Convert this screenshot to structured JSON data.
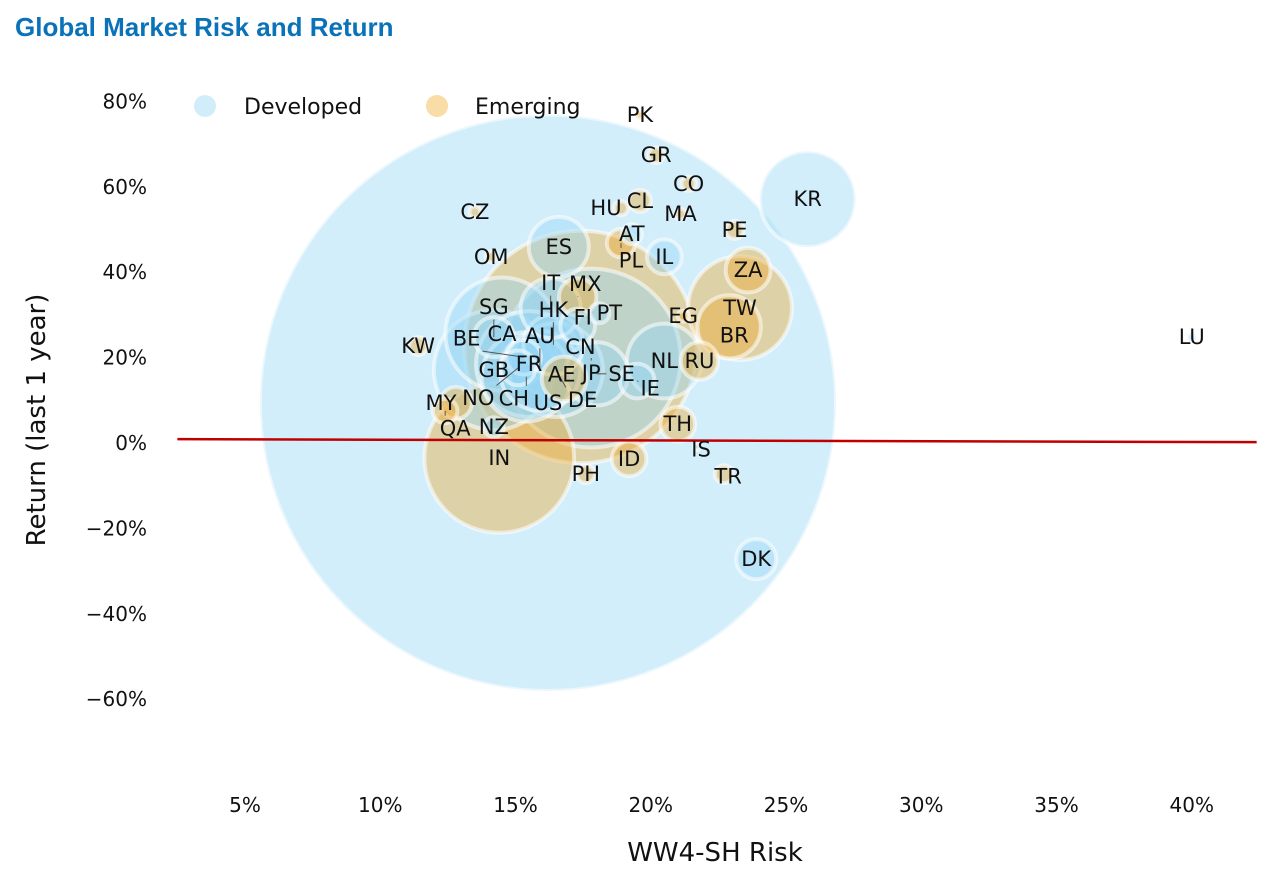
{
  "chart_data": {
    "type": "scatter",
    "title": "Global Market Risk and Return",
    "xlabel": "WW4-SH Risk",
    "ylabel": "Return (last 1 year)",
    "xlim": [
      2.5,
      42.5
    ],
    "ylim": [
      -79,
      88
    ],
    "x_ticks": [
      "5%",
      "10%",
      "15%",
      "20%",
      "25%",
      "30%",
      "35%",
      "40%"
    ],
    "x_tick_values": [
      5,
      10,
      15,
      20,
      25,
      30,
      35,
      40
    ],
    "y_ticks": [
      "80%",
      "60%",
      "40%",
      "20%",
      "0%",
      "−20%",
      "−40%",
      "−60%"
    ],
    "y_tick_values": [
      80,
      60,
      40,
      20,
      0,
      -20,
      -40,
      -60
    ],
    "grid": false,
    "legend": {
      "placement": "top-left",
      "entries": [
        "Developed",
        "Emerging"
      ]
    },
    "colors": {
      "Developed": "#bfe6f8",
      "Emerging": "#f5c46a",
      "trend": "#c00000"
    },
    "trend_line": {
      "x": [
        2.5,
        42.4
      ],
      "y": [
        0.9,
        0.2
      ]
    },
    "points": [
      {
        "label": "US",
        "group": "Developed",
        "x": 16.2,
        "y": 9.4,
        "size": 830
      },
      {
        "label": "CN",
        "group": "Emerging",
        "x": 17.4,
        "y": 22.5,
        "size": 135
      },
      {
        "label": "JP",
        "group": "Developed",
        "x": 17.8,
        "y": 19.9,
        "size": 80
      },
      {
        "label": "IN",
        "group": "Emerging",
        "x": 14.4,
        "y": -3.5,
        "size": 56
      },
      {
        "label": "GB",
        "group": "Developed",
        "x": 14.2,
        "y": 17.1,
        "size": 36
      },
      {
        "label": "CA",
        "group": "Developed",
        "x": 14.5,
        "y": 25.5,
        "size": 32
      },
      {
        "label": "FR",
        "group": "Developed",
        "x": 15.5,
        "y": 18.5,
        "size": 28
      },
      {
        "label": "TW",
        "group": "Emerging",
        "x": 23.3,
        "y": 31.6,
        "size": 27
      },
      {
        "label": "KR",
        "group": "Developed",
        "x": 25.8,
        "y": 57.1,
        "size": 23
      },
      {
        "label": "DE",
        "group": "Developed",
        "x": 16.5,
        "y": 17.1,
        "size": 22
      },
      {
        "label": "CH",
        "group": "Developed",
        "x": 15.4,
        "y": 15.5,
        "size": 20
      },
      {
        "label": "AU",
        "group": "Developed",
        "x": 15.9,
        "y": 16.9,
        "size": 16
      },
      {
        "label": "NL",
        "group": "Developed",
        "x": 20.5,
        "y": 19.2,
        "size": 14
      },
      {
        "label": "SE",
        "group": "Developed",
        "x": 18.0,
        "y": 16.2,
        "size": 10
      },
      {
        "label": "HK",
        "group": "Developed",
        "x": 16.4,
        "y": 23.0,
        "size": 9
      },
      {
        "label": "IT",
        "group": "Developed",
        "x": 16.3,
        "y": 31.6,
        "size": 9
      },
      {
        "label": "ES",
        "group": "Developed",
        "x": 16.6,
        "y": 45.9,
        "size": 9
      },
      {
        "label": "BR",
        "group": "Emerging",
        "x": 22.9,
        "y": 27.2,
        "size": 10
      },
      {
        "label": "DK",
        "group": "Developed",
        "x": 23.9,
        "y": -27.2,
        "size": 4
      },
      {
        "label": "SG",
        "group": "Developed",
        "x": 14.2,
        "y": 24.8,
        "size": 4
      },
      {
        "label": "BE",
        "group": "Developed",
        "x": 15.3,
        "y": 20.1,
        "size": 3
      },
      {
        "label": "FI",
        "group": "Developed",
        "x": 17.3,
        "y": 27.4,
        "size": 3
      },
      {
        "label": "NO",
        "group": "Developed",
        "x": 15.1,
        "y": 17.6,
        "size": 3
      },
      {
        "label": "IL",
        "group": "Developed",
        "x": 20.5,
        "y": 43.6,
        "size": 3
      },
      {
        "label": "IE",
        "group": "Developed",
        "x": 19.5,
        "y": 14.5,
        "size": 3
      },
      {
        "label": "AE",
        "group": "Emerging",
        "x": 16.8,
        "y": 15.0,
        "size": 5
      },
      {
        "label": "ZA",
        "group": "Emerging",
        "x": 23.6,
        "y": 40.5,
        "size": 5
      },
      {
        "label": "MX",
        "group": "Emerging",
        "x": 17.3,
        "y": 34.2,
        "size": 3.5
      },
      {
        "label": "RU",
        "group": "Emerging",
        "x": 21.8,
        "y": 19.2,
        "size": 3.5
      },
      {
        "label": "ID",
        "group": "Emerging",
        "x": 19.2,
        "y": -3.7,
        "size": 3
      },
      {
        "label": "TH",
        "group": "Emerging",
        "x": 21.0,
        "y": 4.4,
        "size": 3
      },
      {
        "label": "MY",
        "group": "Emerging",
        "x": 12.8,
        "y": 9.4,
        "size": 2.5
      },
      {
        "label": "NZ",
        "group": "Developed",
        "x": 14.2,
        "y": 3.7,
        "size": 1
      },
      {
        "label": "AT",
        "group": "Developed",
        "x": 19.3,
        "y": 48.9,
        "size": 1
      },
      {
        "label": "PT",
        "group": "Developed",
        "x": 18.1,
        "y": 30.4,
        "size": 1
      },
      {
        "label": "IS",
        "group": "Developed",
        "x": 21.7,
        "y": -0.9,
        "size": 0.1
      },
      {
        "label": "LU",
        "group": "Developed",
        "x": 40.0,
        "y": 24.8,
        "size": 0.2
      },
      {
        "label": "PL",
        "group": "Emerging",
        "x": 18.9,
        "y": 46.8,
        "size": 2
      },
      {
        "label": "QA",
        "group": "Emerging",
        "x": 12.4,
        "y": 7.5,
        "size": 1.5
      },
      {
        "label": "CL",
        "group": "Emerging",
        "x": 19.6,
        "y": 56.7,
        "size": 1.2
      },
      {
        "label": "PE",
        "group": "Emerging",
        "x": 23.1,
        "y": 49.9,
        "size": 0.8
      },
      {
        "label": "TR",
        "group": "Emerging",
        "x": 22.7,
        "y": -7.3,
        "size": 0.8
      },
      {
        "label": "PH",
        "group": "Emerging",
        "x": 17.6,
        "y": -7.3,
        "size": 0.8
      },
      {
        "label": "KW",
        "group": "Emerging",
        "x": 11.4,
        "y": 22.7,
        "size": 0.8
      },
      {
        "label": "GR",
        "group": "Emerging",
        "x": 20.2,
        "y": 67.4,
        "size": 0.6
      },
      {
        "label": "HU",
        "group": "Emerging",
        "x": 18.9,
        "y": 55.0,
        "size": 0.5
      },
      {
        "label": "CO",
        "group": "Emerging",
        "x": 21.4,
        "y": 60.7,
        "size": 0.5
      },
      {
        "label": "OM",
        "group": "Emerging",
        "x": 14.1,
        "y": 43.6,
        "size": 0.3
      },
      {
        "label": "CZ",
        "group": "Emerging",
        "x": 13.5,
        "y": 54.1,
        "size": 0.3
      },
      {
        "label": "MA",
        "group": "Emerging",
        "x": 21.1,
        "y": 53.6,
        "size": 0.3
      },
      {
        "label": "EG",
        "group": "Emerging",
        "x": 21.2,
        "y": 29.7,
        "size": 0.3
      },
      {
        "label": "PK",
        "group": "Emerging",
        "x": 19.6,
        "y": 76.8,
        "size": 0.2
      }
    ]
  }
}
